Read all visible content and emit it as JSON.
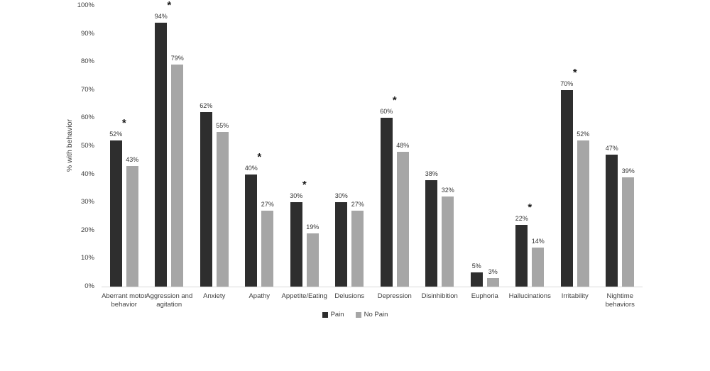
{
  "figure": {
    "background": "#ffffff",
    "axis_line_color": "#d9d9d9",
    "text_color": "#404040"
  },
  "chart_data": {
    "type": "bar",
    "title": "",
    "xlabel": "",
    "ylabel": "% with behavior",
    "ylim": [
      0,
      100
    ],
    "ytick_step": 10,
    "ytick_labels": [
      "0%",
      "10%",
      "20%",
      "30%",
      "40%",
      "50%",
      "60%",
      "70%",
      "80%",
      "90%",
      "100%"
    ],
    "grid": false,
    "legend_position": "bottom-center",
    "categories": [
      "Aberrant motor behavior",
      "Aggression and agitation",
      "Anxiety",
      "Apathy",
      "Appetite/Eating",
      "Delusions",
      "Depression",
      "Disinhibition",
      "Euphoria",
      "Hallucinations",
      "Irritability",
      "Nightime behaviors"
    ],
    "series": [
      {
        "name": "Pain",
        "color": "#2e2e2e",
        "values": [
          52,
          94,
          62,
          40,
          30,
          30,
          60,
          38,
          5,
          22,
          70,
          47
        ]
      },
      {
        "name": "No Pain",
        "color": "#a6a6a6",
        "values": [
          43,
          79,
          55,
          27,
          19,
          27,
          48,
          32,
          3,
          14,
          52,
          39
        ]
      }
    ],
    "value_label_suffix": "%",
    "significance_marker": "*",
    "significant_categories": [
      0,
      1,
      3,
      4,
      6,
      9,
      10
    ]
  }
}
